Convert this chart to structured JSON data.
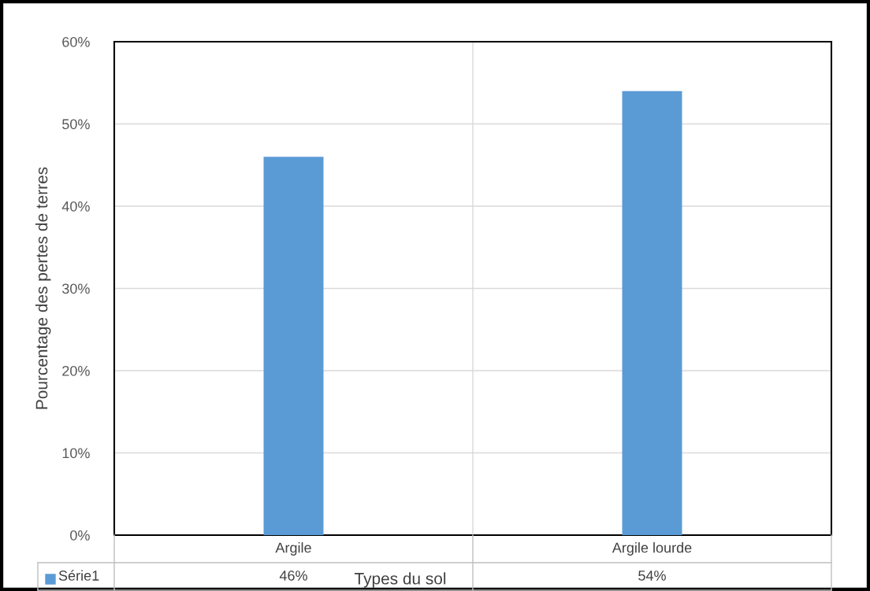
{
  "chart_data": {
    "type": "bar",
    "xlabel": "Types du sol",
    "ylabel": "Pourcentage des pertes de terres",
    "categories": [
      "Argile",
      "Argile lourde"
    ],
    "series": [
      {
        "name": "Série1",
        "color": "#5b9bd5",
        "values": [
          46,
          54
        ],
        "value_labels": [
          "46%",
          "54%"
        ]
      }
    ],
    "ylim": [
      0,
      60
    ],
    "yticks": [
      {
        "value": 0,
        "label": "0%"
      },
      {
        "value": 10,
        "label": "10%"
      },
      {
        "value": 20,
        "label": "20%"
      },
      {
        "value": 30,
        "label": "30%"
      },
      {
        "value": 40,
        "label": "40%"
      },
      {
        "value": 50,
        "label": "50%"
      },
      {
        "value": 60,
        "label": "60%"
      }
    ],
    "grid": "y",
    "legend": "bottom left"
  }
}
